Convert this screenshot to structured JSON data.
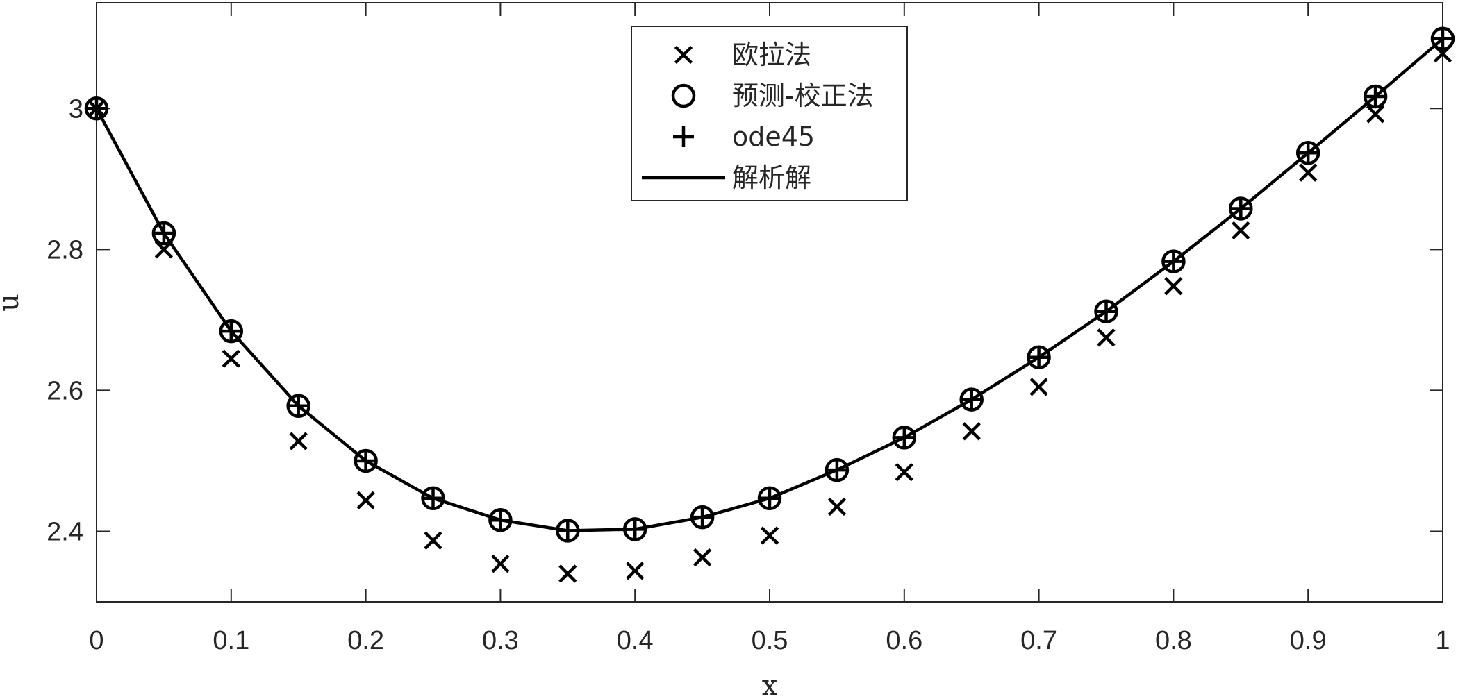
{
  "chart_data": {
    "type": "line",
    "xlabel": "x",
    "ylabel": "u",
    "xlim": [
      0,
      1
    ],
    "ylim": [
      2.3,
      3.15
    ],
    "grid": false,
    "legend_position": "top-center",
    "xticks": [
      "0",
      "0.1",
      "0.2",
      "0.3",
      "0.4",
      "0.5",
      "0.6",
      "0.7",
      "0.8",
      "0.9",
      "1"
    ],
    "yticks": [
      "2.4",
      "2.6",
      "2.8",
      "3"
    ],
    "x": [
      0,
      0.05,
      0.1,
      0.15,
      0.2,
      0.25,
      0.3,
      0.35,
      0.4,
      0.45,
      0.5,
      0.55,
      0.6,
      0.65,
      0.7,
      0.75,
      0.8,
      0.85,
      0.9,
      0.95,
      1
    ],
    "series": [
      {
        "name": "欧拉法",
        "marker": "x",
        "values": [
          3.0,
          2.8,
          2.645,
          2.528,
          2.444,
          2.387,
          2.354,
          2.34,
          2.344,
          2.363,
          2.394,
          2.435,
          2.484,
          2.542,
          2.605,
          2.675,
          2.748,
          2.827,
          2.909,
          2.992,
          3.078
        ]
      },
      {
        "name": "预测-校正法",
        "marker": "circle",
        "values": [
          3.0,
          2.823,
          2.684,
          2.578,
          2.5,
          2.447,
          2.416,
          2.401,
          2.403,
          2.42,
          2.447,
          2.487,
          2.533,
          2.587,
          2.647,
          2.712,
          2.783,
          2.858,
          2.937,
          3.017,
          3.099
        ]
      },
      {
        "name": "ode45",
        "marker": "plus",
        "values": [
          3.0,
          2.823,
          2.684,
          2.578,
          2.5,
          2.447,
          2.416,
          2.401,
          2.403,
          2.42,
          2.447,
          2.487,
          2.533,
          2.587,
          2.647,
          2.712,
          2.783,
          2.858,
          2.937,
          3.017,
          3.099
        ]
      },
      {
        "name": "解析解",
        "marker": "line",
        "values": [
          3.0,
          2.823,
          2.684,
          2.578,
          2.5,
          2.447,
          2.416,
          2.401,
          2.403,
          2.42,
          2.447,
          2.487,
          2.533,
          2.587,
          2.647,
          2.712,
          2.783,
          2.858,
          2.937,
          3.017,
          3.099
        ]
      }
    ],
    "colors": {
      "ink": "#000000",
      "axis": "#262626",
      "background": "#ffffff"
    }
  }
}
